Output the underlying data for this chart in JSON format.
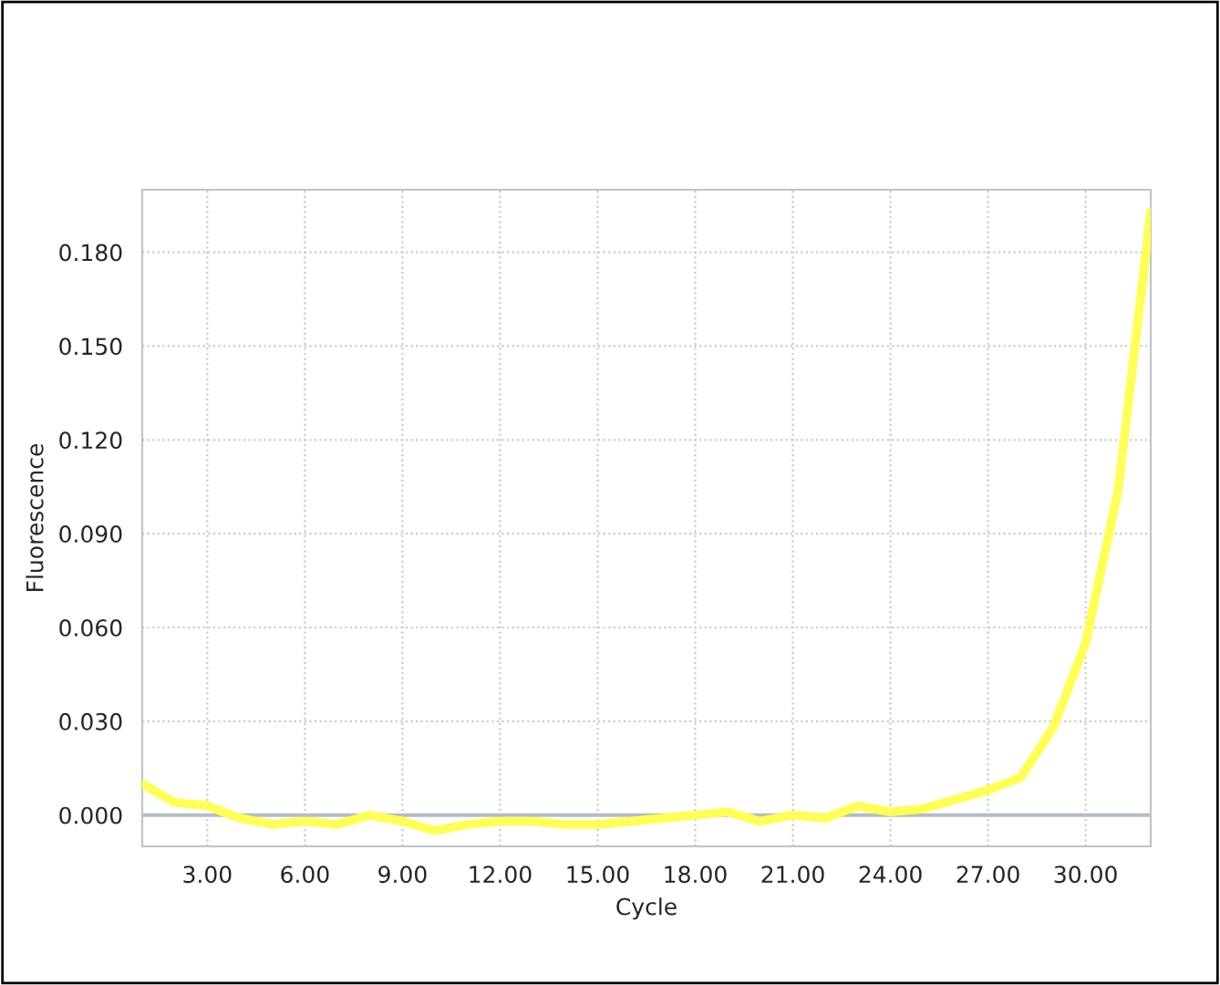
{
  "chart_data": {
    "type": "line",
    "xlabel": "Cycle",
    "ylabel": "Fluorescence",
    "x": [
      1,
      2,
      3,
      4,
      5,
      6,
      7,
      8,
      9,
      10,
      11,
      12,
      13,
      14,
      15,
      16,
      17,
      18,
      19,
      20,
      21,
      22,
      23,
      24,
      25,
      26,
      27,
      28,
      29,
      30,
      31,
      32
    ],
    "series": [
      {
        "color": "#ffff55",
        "values": [
          0.01,
          0.004,
          0.003,
          -0.001,
          -0.003,
          -0.002,
          -0.003,
          0.0,
          -0.002,
          -0.005,
          -0.003,
          -0.002,
          -0.002,
          -0.003,
          -0.003,
          -0.002,
          -0.001,
          0.0,
          0.001,
          -0.002,
          0.0,
          -0.001,
          0.003,
          0.001,
          0.002,
          0.005,
          0.008,
          0.012,
          0.028,
          0.055,
          0.104,
          0.193
        ]
      }
    ],
    "xlim": [
      1,
      32
    ],
    "ylim": [
      -0.01,
      0.2
    ],
    "xticks": [
      {
        "value": 3,
        "label": "3.00"
      },
      {
        "value": 6,
        "label": "6.00"
      },
      {
        "value": 9,
        "label": "9.00"
      },
      {
        "value": 12,
        "label": "12.00"
      },
      {
        "value": 15,
        "label": "15.00"
      },
      {
        "value": 18,
        "label": "18.00"
      },
      {
        "value": 21,
        "label": "21.00"
      },
      {
        "value": 24,
        "label": "24.00"
      },
      {
        "value": 27,
        "label": "27.00"
      },
      {
        "value": 30,
        "label": "30.00"
      }
    ],
    "yticks": [
      {
        "value": 0,
        "label": "0.000"
      },
      {
        "value": 0.03,
        "label": "0.030"
      },
      {
        "value": 0.06,
        "label": "0.060"
      },
      {
        "value": 0.09,
        "label": "0.090"
      },
      {
        "value": 0.12,
        "label": "0.120"
      },
      {
        "value": 0.15,
        "label": "0.150"
      },
      {
        "value": 0.18,
        "label": "0.180"
      }
    ],
    "ref_lines": [
      {
        "axis": "y",
        "value": 0,
        "color": "#b4bcc4"
      }
    ],
    "grid": true,
    "legend": false,
    "marker": "none",
    "line_style": "solid"
  }
}
